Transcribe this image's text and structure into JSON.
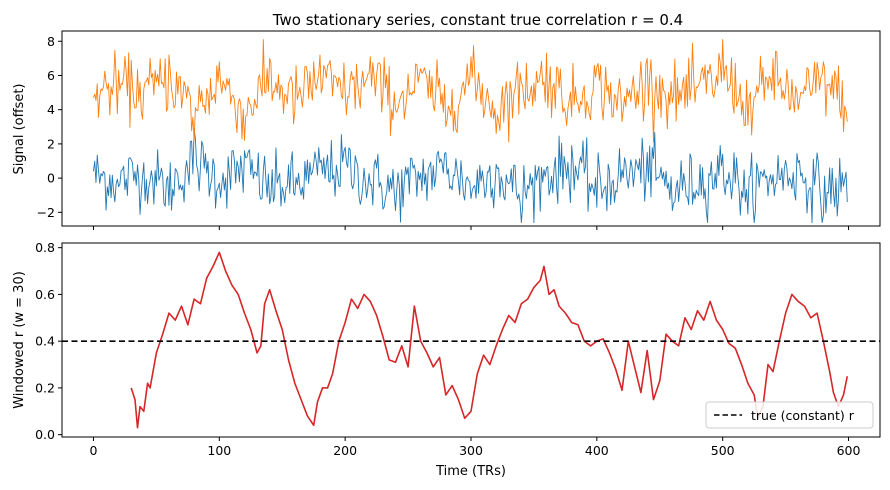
{
  "chart_data": [
    {
      "type": "line",
      "title": "Two stationary series, constant true correlation r = 0.4",
      "xlabel": "",
      "ylabel": "Signal (offset)",
      "xlim": [
        -25,
        625
      ],
      "ylim": [
        -2.8,
        8.6
      ],
      "xticks": [
        0,
        100,
        200,
        300,
        400,
        500,
        600
      ],
      "show_xtick_labels": false,
      "yticks": [
        -2,
        0,
        2,
        4,
        6,
        8
      ],
      "ytick_labels": [
        "−2",
        "0",
        "2",
        "4",
        "6",
        "8"
      ],
      "grid": false,
      "legend": null,
      "series": [
        {
          "color": "#1f77b4",
          "linewidth": 0.9,
          "generator": "noise",
          "n_points": 600,
          "mean": 0.0,
          "sd": 0.9,
          "min": -2.6,
          "max": 2.9,
          "x": [
            0,
            20,
            40,
            60,
            80,
            100,
            120,
            140,
            160,
            180,
            200,
            220,
            240,
            260,
            280,
            300,
            320,
            340,
            360,
            380,
            400,
            420,
            440,
            460,
            480,
            500,
            520,
            540,
            560,
            580,
            599
          ],
          "y": [
            0.4,
            -0.5,
            0.9,
            -1.6,
            2.9,
            -0.3,
            1.6,
            -1.5,
            -1.0,
            0.9,
            1.8,
            -0.4,
            -1.9,
            0.3,
            1.5,
            -1.2,
            0.8,
            -2.6,
            0.6,
            1.9,
            -1.7,
            0.5,
            1.5,
            -1.9,
            -0.9,
            1.4,
            -2.1,
            0.2,
            0.9,
            -2.2,
            -1.4
          ]
        },
        {
          "color": "#ff7f0e",
          "linewidth": 0.9,
          "generator": "noise",
          "n_points": 600,
          "mean": 5.0,
          "sd": 0.9,
          "min": 2.1,
          "max": 8.1,
          "x": [
            0,
            20,
            40,
            60,
            80,
            100,
            120,
            140,
            160,
            180,
            200,
            220,
            240,
            260,
            280,
            300,
            320,
            340,
            360,
            380,
            400,
            420,
            440,
            460,
            480,
            500,
            520,
            540,
            560,
            580,
            599
          ],
          "y": [
            4.7,
            6.3,
            5.2,
            7.2,
            2.2,
            6.8,
            2.2,
            7.0,
            3.9,
            7.2,
            5.0,
            7.1,
            4.0,
            6.4,
            3.0,
            7.1,
            2.6,
            5.6,
            7.3,
            3.6,
            6.5,
            3.3,
            7.0,
            4.4,
            5.3,
            8.1,
            3.1,
            7.0,
            4.0,
            6.8,
            3.3
          ]
        }
      ]
    },
    {
      "type": "line",
      "title": "",
      "xlabel": "Time (TRs)",
      "ylabel": "Windowed r (w = 30)",
      "xlim": [
        -25,
        625
      ],
      "ylim": [
        -0.01,
        0.82
      ],
      "xticks": [
        0,
        100,
        200,
        300,
        400,
        500,
        600
      ],
      "xtick_labels": [
        "0",
        "100",
        "200",
        "300",
        "400",
        "500",
        "600"
      ],
      "yticks": [
        0.0,
        0.2,
        0.4,
        0.6,
        0.8
      ],
      "ytick_labels": [
        "0.0",
        "0.2",
        "0.4",
        "0.6",
        "0.8"
      ],
      "grid": false,
      "legend": "lower right",
      "series": [
        {
          "color": "#d62728",
          "linewidth": 1.6,
          "x": [
            30,
            33,
            35,
            37,
            40,
            43,
            45,
            50,
            55,
            60,
            65,
            70,
            75,
            80,
            85,
            90,
            95,
            100,
            105,
            110,
            115,
            120,
            125,
            130,
            133,
            136,
            140,
            145,
            150,
            155,
            160,
            165,
            170,
            175,
            178,
            182,
            186,
            190,
            195,
            200,
            205,
            210,
            215,
            220,
            225,
            230,
            235,
            240,
            245,
            250,
            255,
            260,
            265,
            270,
            275,
            280,
            285,
            290,
            295,
            300,
            305,
            310,
            315,
            320,
            325,
            330,
            335,
            340,
            345,
            350,
            355,
            358,
            362,
            366,
            370,
            375,
            380,
            385,
            390,
            395,
            400,
            405,
            410,
            415,
            420,
            425,
            430,
            435,
            440,
            445,
            450,
            455,
            460,
            465,
            470,
            475,
            480,
            485,
            490,
            495,
            500,
            505,
            510,
            515,
            520,
            525,
            528,
            532,
            536,
            540,
            545,
            550,
            555,
            560,
            565,
            570,
            575,
            580,
            585,
            588,
            592,
            596,
            599
          ],
          "y": [
            0.2,
            0.15,
            0.03,
            0.12,
            0.1,
            0.22,
            0.2,
            0.35,
            0.43,
            0.52,
            0.49,
            0.55,
            0.47,
            0.58,
            0.56,
            0.67,
            0.72,
            0.78,
            0.7,
            0.64,
            0.6,
            0.52,
            0.45,
            0.35,
            0.38,
            0.56,
            0.62,
            0.53,
            0.45,
            0.32,
            0.22,
            0.15,
            0.08,
            0.04,
            0.14,
            0.2,
            0.2,
            0.26,
            0.4,
            0.48,
            0.58,
            0.54,
            0.6,
            0.57,
            0.51,
            0.42,
            0.32,
            0.31,
            0.38,
            0.29,
            0.55,
            0.4,
            0.35,
            0.29,
            0.33,
            0.17,
            0.21,
            0.15,
            0.07,
            0.1,
            0.26,
            0.34,
            0.3,
            0.38,
            0.45,
            0.51,
            0.48,
            0.56,
            0.58,
            0.63,
            0.66,
            0.72,
            0.6,
            0.62,
            0.55,
            0.52,
            0.48,
            0.47,
            0.4,
            0.38,
            0.4,
            0.41,
            0.35,
            0.28,
            0.19,
            0.4,
            0.29,
            0.18,
            0.36,
            0.15,
            0.23,
            0.43,
            0.4,
            0.38,
            0.5,
            0.45,
            0.53,
            0.49,
            0.57,
            0.49,
            0.45,
            0.39,
            0.37,
            0.3,
            0.22,
            0.17,
            0.07,
            0.12,
            0.3,
            0.27,
            0.4,
            0.52,
            0.6,
            0.57,
            0.55,
            0.5,
            0.52,
            0.4,
            0.27,
            0.18,
            0.12,
            0.17,
            0.25
          ]
        },
        {
          "name": "true (constant) r",
          "color": "#000000",
          "linewidth": 1.6,
          "dashed": true,
          "horizontal_line": 0.4
        }
      ]
    }
  ]
}
